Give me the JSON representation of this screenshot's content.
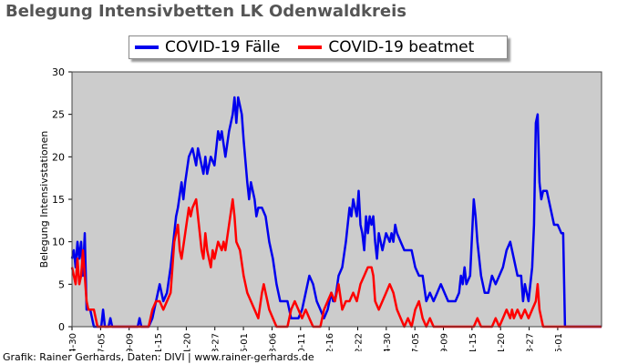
{
  "chart_data": {
    "type": "line",
    "title": "Belegung Intensivbetten LK Odenwaldkreis",
    "ylabel": "Belegung Intensivstationen",
    "xlabel": "",
    "ylim": [
      0,
      30
    ],
    "yticks": [
      "0",
      "5",
      "10",
      "15",
      "20",
      "25",
      "30"
    ],
    "x_tick_labels": [
      "04-30",
      "07-05",
      "09-09",
      "11-15",
      "01-20",
      "03-27",
      "06-01",
      "08-06",
      "10-11",
      "12-16",
      "02-22",
      "04-30",
      "07-05",
      "09-09",
      "11-15",
      "01-20",
      "03-27",
      "06-01"
    ],
    "grid": false,
    "legend_position": "top-center",
    "background_color": "#cccccc",
    "series": [
      {
        "name": "COVID-19 Fälle",
        "color": "#0000ee",
        "points": [
          [
            0,
            8
          ],
          [
            0.5,
            9
          ],
          [
            1,
            7
          ],
          [
            1.5,
            10
          ],
          [
            2,
            8
          ],
          [
            2.5,
            10
          ],
          [
            3,
            6
          ],
          [
            3.5,
            11
          ],
          [
            4,
            2
          ],
          [
            5,
            2
          ],
          [
            5.5,
            1
          ],
          [
            6,
            0
          ],
          [
            8,
            0
          ],
          [
            8.5,
            2
          ],
          [
            9,
            0
          ],
          [
            10,
            0
          ],
          [
            10.5,
            1
          ],
          [
            11,
            0
          ],
          [
            18,
            0
          ],
          [
            18.5,
            1
          ],
          [
            19,
            0
          ],
          [
            20,
            0
          ],
          [
            21,
            0
          ],
          [
            22,
            1
          ],
          [
            23,
            3
          ],
          [
            23.5,
            4
          ],
          [
            24,
            5
          ],
          [
            25,
            3
          ],
          [
            26,
            4
          ],
          [
            27,
            7
          ],
          [
            28,
            11
          ],
          [
            28.5,
            13
          ],
          [
            29,
            14
          ],
          [
            30,
            17
          ],
          [
            30.5,
            15
          ],
          [
            31,
            17
          ],
          [
            32,
            20
          ],
          [
            33,
            21
          ],
          [
            34,
            19
          ],
          [
            34.5,
            21
          ],
          [
            35,
            20
          ],
          [
            36,
            18
          ],
          [
            36.5,
            20
          ],
          [
            37,
            18
          ],
          [
            38,
            20
          ],
          [
            39,
            19
          ],
          [
            40,
            23
          ],
          [
            40.5,
            22
          ],
          [
            41,
            23
          ],
          [
            42,
            20
          ],
          [
            43,
            23
          ],
          [
            44,
            25
          ],
          [
            44.5,
            27
          ],
          [
            45,
            24
          ],
          [
            45.5,
            27
          ],
          [
            46,
            26
          ],
          [
            46.5,
            25
          ],
          [
            47,
            22
          ],
          [
            48,
            17
          ],
          [
            48.5,
            15
          ],
          [
            49,
            17
          ],
          [
            50,
            15
          ],
          [
            50.5,
            13
          ],
          [
            51,
            14
          ],
          [
            52,
            14
          ],
          [
            53,
            13
          ],
          [
            54,
            10
          ],
          [
            55,
            8
          ],
          [
            56,
            5
          ],
          [
            57,
            3
          ],
          [
            58,
            3
          ],
          [
            59,
            3
          ],
          [
            60,
            1
          ],
          [
            61,
            1
          ],
          [
            62,
            1
          ],
          [
            63,
            2
          ],
          [
            64,
            4
          ],
          [
            65,
            6
          ],
          [
            66,
            5
          ],
          [
            67,
            3
          ],
          [
            68,
            2
          ],
          [
            69,
            1
          ],
          [
            70,
            2
          ],
          [
            71,
            4
          ],
          [
            71.5,
            3
          ],
          [
            72,
            3
          ],
          [
            73,
            6
          ],
          [
            74,
            7
          ],
          [
            75,
            10
          ],
          [
            75.5,
            12
          ],
          [
            76,
            14
          ],
          [
            76.5,
            13
          ],
          [
            77,
            15
          ],
          [
            78,
            13
          ],
          [
            78.5,
            16
          ],
          [
            79,
            12
          ],
          [
            79.5,
            11
          ],
          [
            80,
            9
          ],
          [
            80.5,
            13
          ],
          [
            81,
            11
          ],
          [
            81.5,
            13
          ],
          [
            82,
            12
          ],
          [
            82.5,
            13
          ],
          [
            83,
            10
          ],
          [
            83.5,
            8
          ],
          [
            84,
            11
          ],
          [
            85,
            9
          ],
          [
            86,
            11
          ],
          [
            87,
            10
          ],
          [
            87.5,
            11
          ],
          [
            88,
            10
          ],
          [
            88.5,
            12
          ],
          [
            89,
            11
          ],
          [
            90,
            10
          ],
          [
            91,
            9
          ],
          [
            92,
            9
          ],
          [
            93,
            9
          ],
          [
            94,
            7
          ],
          [
            95,
            6
          ],
          [
            96,
            6
          ],
          [
            97,
            3
          ],
          [
            98,
            4
          ],
          [
            99,
            3
          ],
          [
            100,
            4
          ],
          [
            101,
            5
          ],
          [
            102,
            4
          ],
          [
            103,
            3
          ],
          [
            104,
            3
          ],
          [
            105,
            3
          ],
          [
            106,
            4
          ],
          [
            106.5,
            6
          ],
          [
            107,
            5
          ],
          [
            107.5,
            7
          ],
          [
            108,
            5
          ],
          [
            109,
            6
          ],
          [
            110,
            15
          ],
          [
            110.5,
            13
          ],
          [
            111,
            10
          ],
          [
            112,
            6
          ],
          [
            113,
            4
          ],
          [
            114,
            4
          ],
          [
            115,
            6
          ],
          [
            116,
            5
          ],
          [
            117,
            6
          ],
          [
            118,
            7
          ],
          [
            119,
            9
          ],
          [
            120,
            10
          ],
          [
            121,
            8
          ],
          [
            122,
            6
          ],
          [
            123,
            6
          ],
          [
            123.5,
            3
          ],
          [
            124,
            5
          ],
          [
            124.5,
            4
          ],
          [
            125,
            3
          ],
          [
            125.5,
            5
          ],
          [
            126,
            7
          ],
          [
            126.5,
            12
          ],
          [
            127,
            24
          ],
          [
            127.5,
            25
          ],
          [
            128,
            17
          ],
          [
            128.5,
            15
          ],
          [
            129,
            16
          ],
          [
            130,
            16
          ],
          [
            131,
            14
          ],
          [
            132,
            12
          ],
          [
            133,
            12
          ],
          [
            134,
            11
          ],
          [
            134.5,
            11
          ],
          [
            135,
            0
          ],
          [
            145,
            0
          ]
        ]
      },
      {
        "name": "COVID-19 beatmet",
        "color": "#ff0000",
        "points": [
          [
            0,
            7
          ],
          [
            0.5,
            6
          ],
          [
            1,
            5
          ],
          [
            1.5,
            8
          ],
          [
            2,
            5
          ],
          [
            2.5,
            6
          ],
          [
            3,
            9
          ],
          [
            4,
            3
          ],
          [
            4.5,
            2
          ],
          [
            5,
            2
          ],
          [
            6,
            2
          ],
          [
            7,
            0
          ],
          [
            21,
            0
          ],
          [
            22,
            2
          ],
          [
            23,
            3
          ],
          [
            24,
            3
          ],
          [
            25,
            2
          ],
          [
            26,
            3
          ],
          [
            27,
            4
          ],
          [
            28,
            10
          ],
          [
            29,
            12
          ],
          [
            29.5,
            9
          ],
          [
            30,
            8
          ],
          [
            31,
            11
          ],
          [
            32,
            14
          ],
          [
            32.5,
            13
          ],
          [
            33,
            14
          ],
          [
            34,
            15
          ],
          [
            35,
            11
          ],
          [
            35.5,
            9
          ],
          [
            36,
            8
          ],
          [
            36.5,
            11
          ],
          [
            37,
            9
          ],
          [
            38,
            7
          ],
          [
            38.5,
            9
          ],
          [
            39,
            8
          ],
          [
            40,
            10
          ],
          [
            41,
            9
          ],
          [
            41.5,
            10
          ],
          [
            42,
            9
          ],
          [
            43,
            12
          ],
          [
            44,
            15
          ],
          [
            44.5,
            13
          ],
          [
            45,
            10
          ],
          [
            46,
            9
          ],
          [
            47,
            6
          ],
          [
            48,
            4
          ],
          [
            49,
            3
          ],
          [
            50,
            2
          ],
          [
            51,
            1
          ],
          [
            52,
            4
          ],
          [
            52.5,
            5
          ],
          [
            53,
            4
          ],
          [
            54,
            2
          ],
          [
            55,
            1
          ],
          [
            56,
            0
          ],
          [
            59,
            0
          ],
          [
            60,
            2
          ],
          [
            61,
            3
          ],
          [
            62,
            2
          ],
          [
            63,
            1
          ],
          [
            64,
            2
          ],
          [
            65,
            1
          ],
          [
            66,
            0
          ],
          [
            68,
            0
          ],
          [
            69,
            2
          ],
          [
            70,
            3
          ],
          [
            71,
            4
          ],
          [
            72,
            3
          ],
          [
            73,
            5
          ],
          [
            74,
            2
          ],
          [
            75,
            3
          ],
          [
            76,
            3
          ],
          [
            77,
            4
          ],
          [
            78,
            3
          ],
          [
            79,
            5
          ],
          [
            80,
            6
          ],
          [
            81,
            7
          ],
          [
            82,
            7
          ],
          [
            82.5,
            6
          ],
          [
            83,
            3
          ],
          [
            84,
            2
          ],
          [
            85,
            3
          ],
          [
            86,
            4
          ],
          [
            87,
            5
          ],
          [
            88,
            4
          ],
          [
            89,
            2
          ],
          [
            90,
            1
          ],
          [
            91,
            0
          ],
          [
            92,
            1
          ],
          [
            93,
            0
          ],
          [
            94,
            2
          ],
          [
            95,
            3
          ],
          [
            95.5,
            2
          ],
          [
            96,
            1
          ],
          [
            97,
            0
          ],
          [
            98,
            1
          ],
          [
            99,
            0
          ],
          [
            102,
            0
          ],
          [
            103,
            0
          ],
          [
            110,
            0
          ],
          [
            111,
            1
          ],
          [
            112,
            0
          ],
          [
            115,
            0
          ],
          [
            116,
            1
          ],
          [
            117,
            0
          ],
          [
            118,
            1
          ],
          [
            119,
            2
          ],
          [
            120,
            1
          ],
          [
            120.5,
            2
          ],
          [
            121,
            1
          ],
          [
            122,
            2
          ],
          [
            123,
            1
          ],
          [
            124,
            2
          ],
          [
            125,
            1
          ],
          [
            126,
            2
          ],
          [
            127,
            3
          ],
          [
            127.5,
            5
          ],
          [
            128,
            2
          ],
          [
            129,
            0
          ],
          [
            145,
            0
          ]
        ]
      }
    ]
  },
  "legend": {
    "items": [
      {
        "label": "COVID-19 Fälle",
        "color": "#0000ee"
      },
      {
        "label": "COVID-19 beatmet",
        "color": "#ff0000"
      }
    ]
  },
  "footer": {
    "credit": "Grafik: Rainer Gerhards, Daten: DIVI | www.rainer-gerhards.de"
  }
}
